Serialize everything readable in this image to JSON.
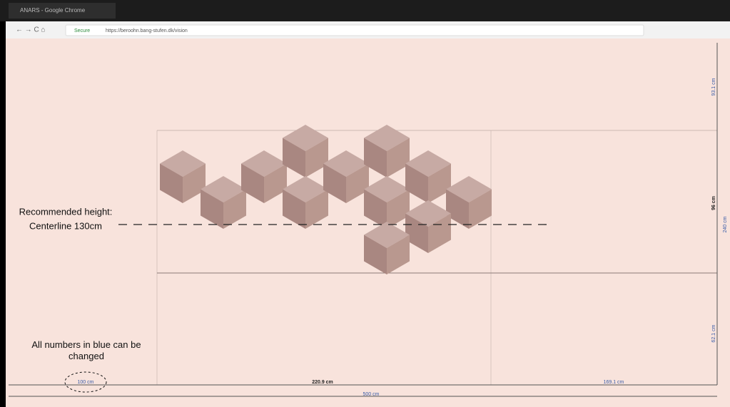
{
  "browser": {
    "tab_title": "ANARS - Google Chrome",
    "security": "Secure",
    "url": "https://beroohn.bang-stufen.dk/vision"
  },
  "annotations": {
    "recommended_height": "Recommended height:",
    "centerline": "Centerline 130cm",
    "blue_note": "All numbers in blue can be changed"
  },
  "dimensions": {
    "horizontal": [
      "100 cm",
      "220.9 cm",
      "169.1 cm"
    ],
    "total_width": "500 cm",
    "vertical": [
      "93.1 cm",
      "96 cm",
      "62.1 cm"
    ],
    "total_height": "240 cm"
  }
}
